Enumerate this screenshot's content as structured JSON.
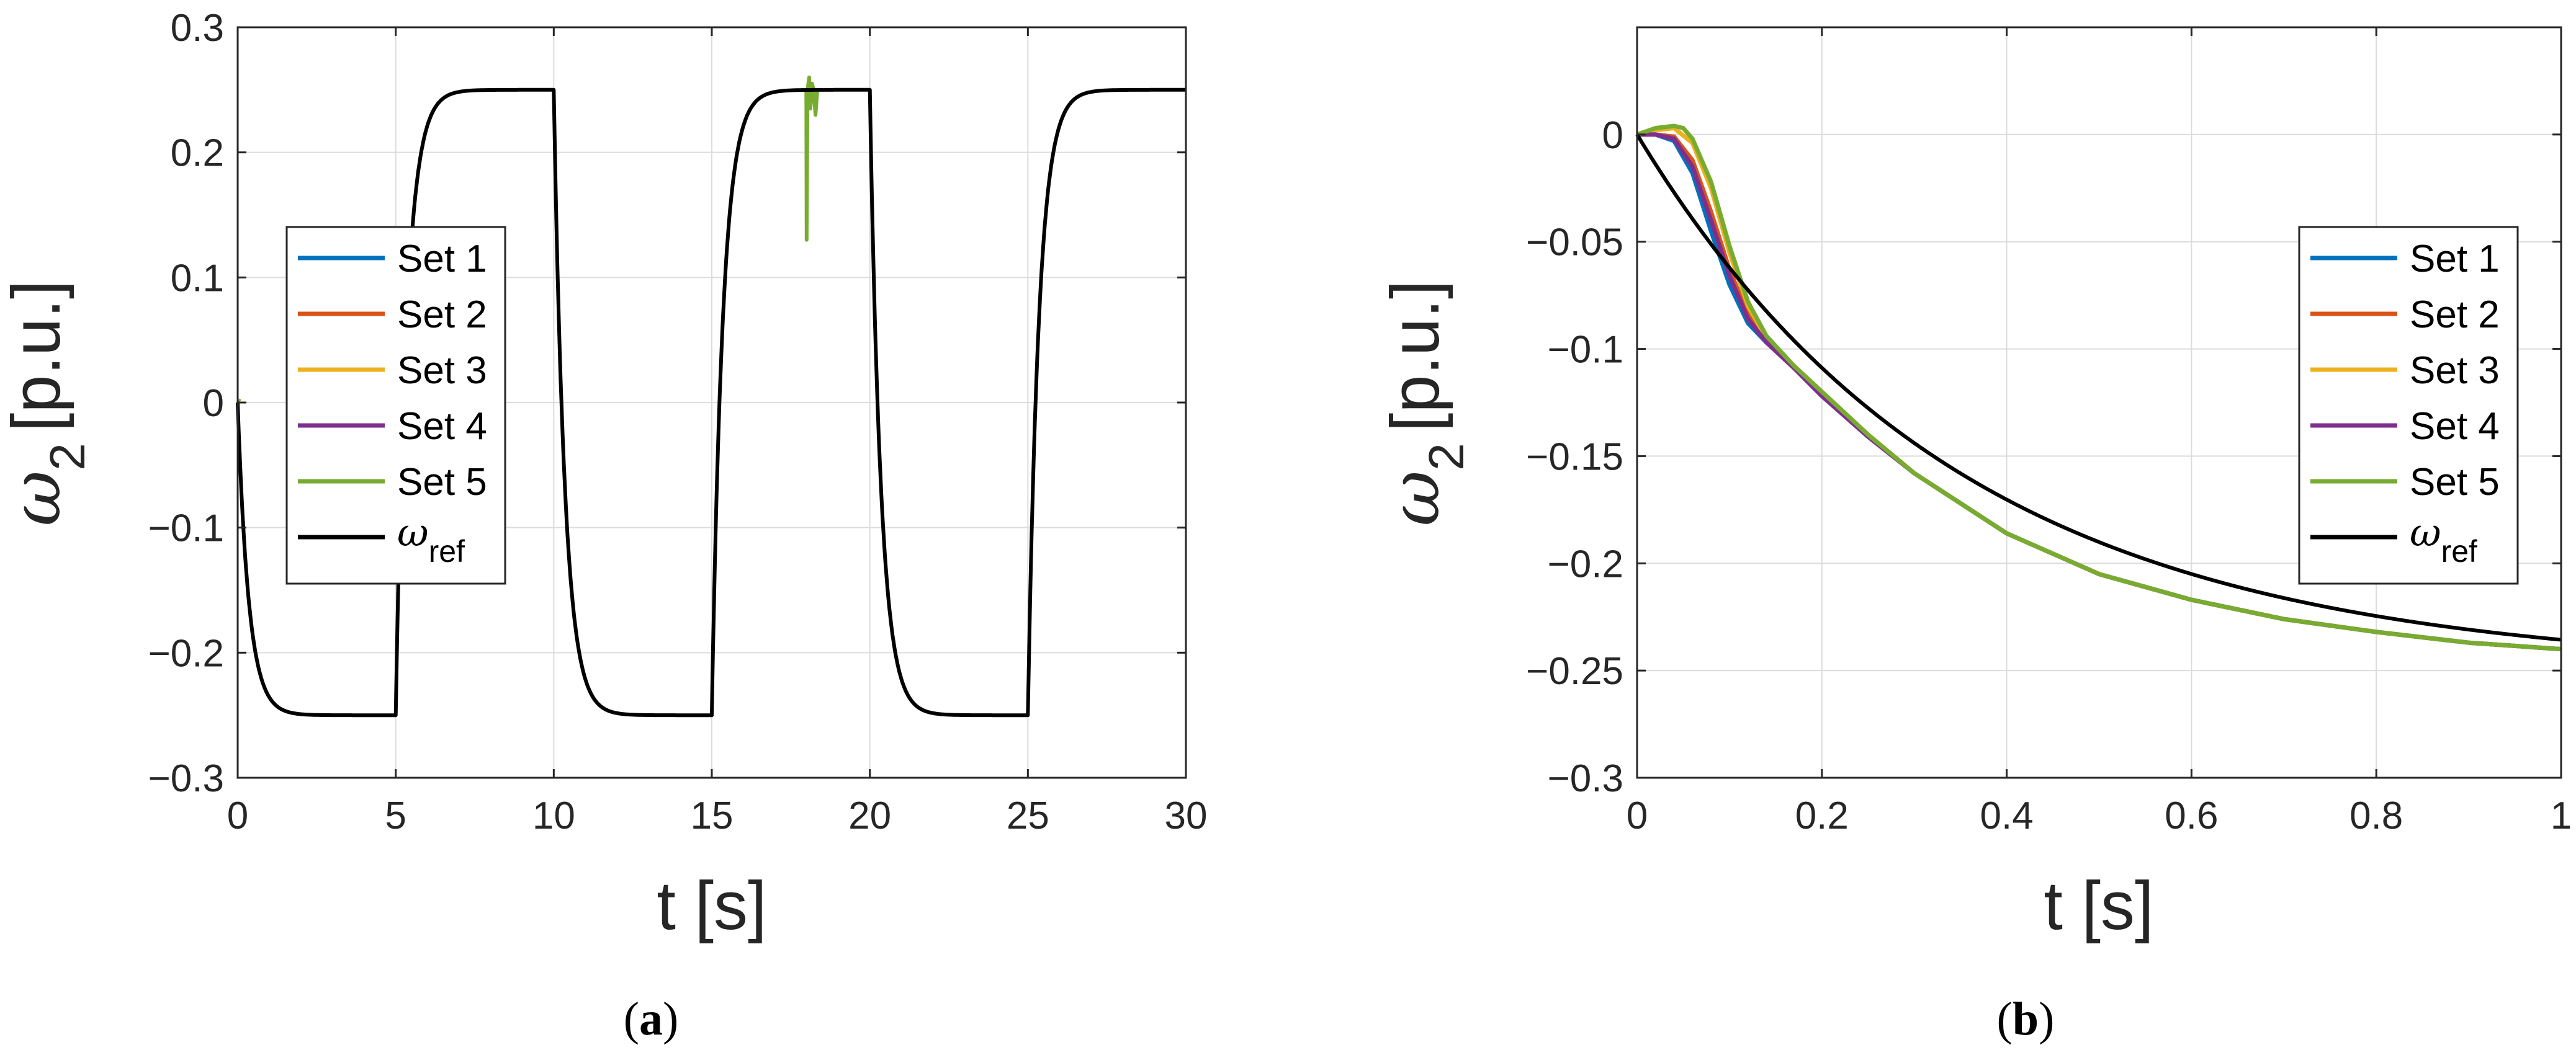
{
  "chart_data": [
    {
      "type": "line",
      "panel_label": "a",
      "xlabel": "t [s]",
      "ylabel_symbol": "ω",
      "ylabel_subscript": "2",
      "ylabel_unit": "[p.u.]",
      "xlim": [
        0,
        30
      ],
      "ylim": [
        -0.3,
        0.3
      ],
      "xticks": [
        "0",
        "5",
        "10",
        "15",
        "20",
        "25",
        "30"
      ],
      "yticks": [
        "0.3",
        "0.2",
        "0.1",
        "0",
        "−0.1",
        "−0.2",
        "−0.3"
      ],
      "grid": true,
      "legend_position": "left-middle",
      "legend": [
        {
          "label": "Set 1",
          "color": "#0072BD"
        },
        {
          "label": "Set 2",
          "color": "#D95319"
        },
        {
          "label": "Set 3",
          "color": "#EDB120"
        },
        {
          "label": "Set 4",
          "color": "#7E2F8E"
        },
        {
          "label": "Set 5",
          "color": "#77AC30"
        },
        {
          "label_symbol": "ω",
          "label_subscript": "ref",
          "color": "#000000"
        }
      ],
      "reference": {
        "steps": [
          {
            "t": 0,
            "value": -0.25
          },
          {
            "t": 5,
            "value": 0.25
          },
          {
            "t": 10,
            "value": -0.25
          },
          {
            "t": 15,
            "value": 0.25
          },
          {
            "t": 20,
            "value": -0.25
          },
          {
            "t": 25,
            "value": 0.25
          }
        ],
        "tau": 0.35,
        "t_end": 30
      },
      "set5_disturbance": [
        [
          17.99,
          0.25
        ],
        [
          18.0,
          0.13
        ],
        [
          18.03,
          0.25
        ],
        [
          18.08,
          0.26
        ],
        [
          18.12,
          0.235
        ],
        [
          18.17,
          0.255
        ],
        [
          18.22,
          0.25
        ],
        [
          18.28,
          0.23
        ],
        [
          18.34,
          0.25
        ]
      ]
    },
    {
      "type": "line",
      "panel_label": "b",
      "xlabel": "t [s]",
      "ylabel_symbol": "ω",
      "ylabel_subscript": "2",
      "ylabel_unit": "[p.u.]",
      "xlim": [
        0,
        1
      ],
      "ylim": [
        -0.3,
        0.05
      ],
      "xticks": [
        "0",
        "0.2",
        "0.4",
        "0.6",
        "0.8",
        "1"
      ],
      "yticks": [
        "0",
        "−0.05",
        "−0.1",
        "−0.15",
        "−0.2",
        "−0.25",
        "−0.3"
      ],
      "grid": true,
      "legend_position": "right-middle",
      "legend": [
        {
          "label": "Set 1",
          "color": "#0072BD"
        },
        {
          "label": "Set 2",
          "color": "#D95319"
        },
        {
          "label": "Set 3",
          "color": "#EDB120"
        },
        {
          "label": "Set 4",
          "color": "#7E2F8E"
        },
        {
          "label": "Set 5",
          "color": "#77AC30"
        },
        {
          "label_symbol": "ω",
          "label_subscript": "ref",
          "color": "#000000"
        }
      ],
      "reference": {
        "steps": [
          {
            "t": 0,
            "value": -0.25
          }
        ],
        "tau": 0.35,
        "t_end": 1
      },
      "series": [
        {
          "name": "Set 1",
          "x": [
            0,
            0.02,
            0.04,
            0.06,
            0.08,
            0.1,
            0.12,
            0.14,
            0.17,
            0.2,
            0.25,
            0.3,
            0.4,
            0.5,
            0.6,
            0.7,
            0.8,
            0.9,
            1.0
          ],
          "values": [
            0,
            0.0,
            -0.003,
            -0.018,
            -0.045,
            -0.07,
            -0.088,
            -0.097,
            -0.108,
            -0.12,
            -0.14,
            -0.158,
            -0.186,
            -0.205,
            -0.217,
            -0.226,
            -0.232,
            -0.237,
            -0.24
          ]
        },
        {
          "name": "Set 2",
          "x": [
            0,
            0.02,
            0.04,
            0.06,
            0.08,
            0.1,
            0.12,
            0.14,
            0.17,
            0.2,
            0.25,
            0.3,
            0.4,
            0.5,
            0.6,
            0.7,
            0.8,
            0.9,
            1.0
          ],
          "values": [
            0,
            0.0,
            -0.001,
            -0.012,
            -0.036,
            -0.063,
            -0.084,
            -0.096,
            -0.108,
            -0.12,
            -0.14,
            -0.158,
            -0.186,
            -0.205,
            -0.217,
            -0.226,
            -0.232,
            -0.237,
            -0.24
          ]
        },
        {
          "name": "Set 3",
          "x": [
            0,
            0.02,
            0.04,
            0.06,
            0.08,
            0.1,
            0.12,
            0.14,
            0.17,
            0.2,
            0.25,
            0.3,
            0.4,
            0.5,
            0.6,
            0.7,
            0.8,
            0.9,
            1.0
          ],
          "values": [
            0,
            0.002,
            0.003,
            -0.004,
            -0.025,
            -0.055,
            -0.08,
            -0.095,
            -0.108,
            -0.12,
            -0.14,
            -0.158,
            -0.186,
            -0.205,
            -0.217,
            -0.226,
            -0.232,
            -0.237,
            -0.24
          ]
        },
        {
          "name": "Set 4",
          "x": [
            0,
            0.02,
            0.04,
            0.06,
            0.08,
            0.1,
            0.12,
            0.14,
            0.17,
            0.2,
            0.25,
            0.3,
            0.4,
            0.5,
            0.6,
            0.7,
            0.8,
            0.9,
            1.0
          ],
          "values": [
            0,
            0.0,
            -0.002,
            -0.015,
            -0.04,
            -0.066,
            -0.086,
            -0.097,
            -0.109,
            -0.122,
            -0.141,
            -0.158,
            -0.186,
            -0.205,
            -0.217,
            -0.226,
            -0.232,
            -0.237,
            -0.24
          ]
        },
        {
          "name": "Set 5",
          "x": [
            0,
            0.02,
            0.04,
            0.05,
            0.06,
            0.08,
            0.1,
            0.12,
            0.14,
            0.17,
            0.2,
            0.25,
            0.3,
            0.4,
            0.5,
            0.6,
            0.7,
            0.8,
            0.9,
            1.0
          ],
          "values": [
            0,
            0.003,
            0.004,
            0.003,
            -0.002,
            -0.022,
            -0.052,
            -0.078,
            -0.094,
            -0.108,
            -0.12,
            -0.14,
            -0.158,
            -0.186,
            -0.205,
            -0.217,
            -0.226,
            -0.232,
            -0.237,
            -0.24
          ]
        }
      ]
    }
  ]
}
